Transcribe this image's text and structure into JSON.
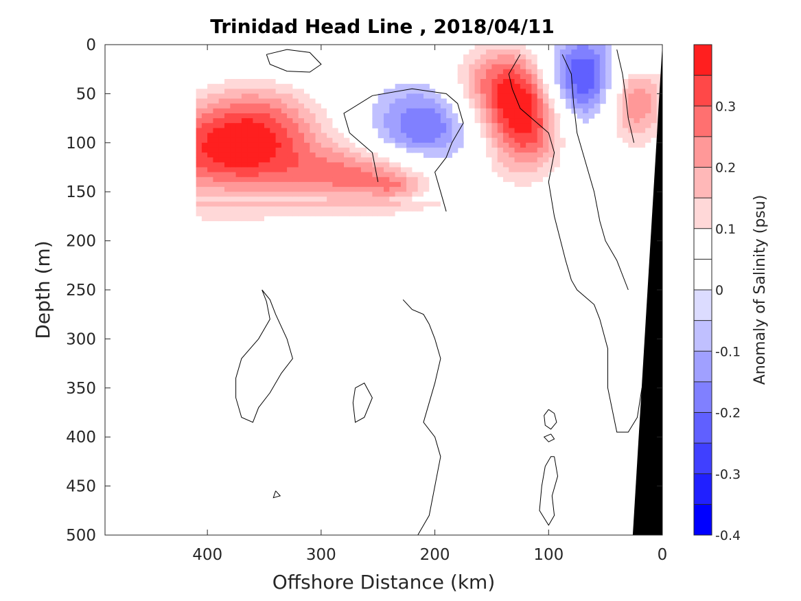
{
  "chart_data": {
    "type": "heatmap",
    "title": "Trinidad Head Line , 2018/04/11",
    "xlabel": "Offshore Distance (km)",
    "ylabel": "Depth (m)",
    "xlim": [
      490,
      0
    ],
    "ylim": [
      0,
      500
    ],
    "x_ticks": [
      400,
      300,
      200,
      100,
      0
    ],
    "y_ticks": [
      0,
      50,
      100,
      150,
      200,
      250,
      300,
      350,
      400,
      450,
      500
    ],
    "colorbar": {
      "label": "Anomaly of Salinity (psu)",
      "range": [
        -0.4,
        0.4
      ],
      "ticks": [
        -0.4,
        -0.3,
        -0.2,
        -0.1,
        0,
        0.1,
        0.2,
        0.3
      ],
      "tick_labels": [
        "-0.4",
        "-0.3",
        "-0.2",
        "-0.1",
        "0",
        "0.1",
        "0.2",
        "0.3"
      ],
      "levels": 16,
      "colors": [
        "#0000ff",
        "#2020ff",
        "#4040ff",
        "#6060ff",
        "#8080ff",
        "#a0a0ff",
        "#c0c0ff",
        "#dcdcff",
        "#ffffff",
        "#ffffff",
        "#ffd8d8",
        "#ffb8b8",
        "#ff9898",
        "#ff7070",
        "#ff4848",
        "#ff1f1f"
      ]
    },
    "anomaly_blobs": [
      {
        "x": 385,
        "depth": 110,
        "rx": 85,
        "rz": 50,
        "value": 0.32
      },
      {
        "x": 355,
        "depth": 75,
        "rx": 55,
        "rz": 45,
        "value": 0.16
      },
      {
        "x": 260,
        "depth": 135,
        "rx": 70,
        "rz": 30,
        "value": 0.24
      },
      {
        "x": 235,
        "depth": 145,
        "rx": 20,
        "rz": 12,
        "value": 0.08
      },
      {
        "x": 150,
        "depth": 40,
        "rx": 40,
        "rz": 45,
        "value": 0.2
      },
      {
        "x": 120,
        "depth": 75,
        "rx": 35,
        "rz": 60,
        "value": 0.36
      },
      {
        "x": 25,
        "depth": 55,
        "rx": 30,
        "rz": 50,
        "value": 0.28
      },
      {
        "x": 210,
        "depth": 85,
        "rx": 45,
        "rz": 42,
        "value": -0.22
      },
      {
        "x": 70,
        "depth": 35,
        "rx": 38,
        "rz": 45,
        "value": -0.3
      },
      {
        "x": 15,
        "depth": 20,
        "rx": 12,
        "rz": 15,
        "value": -0.1
      },
      {
        "x": 320,
        "depth": 15,
        "rx": 35,
        "rz": 14,
        "value": -0.06
      }
    ],
    "data_coverage_x": [
      410,
      0
    ],
    "data_coverage_depth_max_km": [
      [
        410,
        200
      ],
      [
        300,
        205
      ],
      [
        170,
        205
      ],
      [
        100,
        160
      ]
    ],
    "zero_contours": [
      [
        [
          348,
          10
        ],
        [
          330,
          5
        ],
        [
          310,
          8
        ],
        [
          300,
          20
        ],
        [
          310,
          28
        ],
        [
          330,
          27
        ],
        [
          345,
          20
        ],
        [
          348,
          10
        ]
      ],
      [
        [
          250,
          140
        ],
        [
          255,
          110
        ],
        [
          275,
          90
        ],
        [
          280,
          70
        ],
        [
          255,
          52
        ],
        [
          220,
          45
        ],
        [
          190,
          50
        ],
        [
          180,
          60
        ],
        [
          175,
          80
        ],
        [
          185,
          100
        ],
        [
          190,
          115
        ],
        [
          200,
          130
        ],
        [
          195,
          150
        ],
        [
          190,
          170
        ]
      ],
      [
        [
          125,
          10
        ],
        [
          135,
          30
        ],
        [
          132,
          45
        ],
        [
          125,
          65
        ],
        [
          100,
          90
        ],
        [
          95,
          110
        ],
        [
          100,
          140
        ],
        [
          95,
          175
        ],
        [
          85,
          220
        ],
        [
          80,
          240
        ],
        [
          75,
          250
        ],
        [
          60,
          265
        ],
        [
          55,
          280
        ],
        [
          48,
          310
        ],
        [
          48,
          350
        ],
        [
          40,
          395
        ],
        [
          30,
          395
        ],
        [
          22,
          380
        ],
        [
          18,
          350
        ]
      ],
      [
        [
          88,
          10
        ],
        [
          80,
          30
        ],
        [
          78,
          60
        ],
        [
          75,
          90
        ],
        [
          70,
          110
        ],
        [
          60,
          150
        ],
        [
          55,
          180
        ],
        [
          50,
          200
        ],
        [
          40,
          220
        ],
        [
          30,
          250
        ]
      ],
      [
        [
          40,
          5
        ],
        [
          35,
          30
        ],
        [
          32,
          55
        ],
        [
          30,
          75
        ],
        [
          25,
          100
        ]
      ],
      [
        [
          352,
          250
        ],
        [
          345,
          260
        ],
        [
          340,
          275
        ],
        [
          330,
          300
        ],
        [
          325,
          320
        ],
        [
          335,
          335
        ],
        [
          345,
          355
        ],
        [
          355,
          370
        ],
        [
          360,
          385
        ],
        [
          370,
          380
        ],
        [
          375,
          360
        ],
        [
          375,
          340
        ],
        [
          370,
          320
        ],
        [
          355,
          300
        ],
        [
          345,
          280
        ],
        [
          348,
          262
        ],
        [
          352,
          250
        ]
      ],
      [
        [
          228,
          260
        ],
        [
          220,
          270
        ],
        [
          210,
          275
        ],
        [
          205,
          285
        ],
        [
          200,
          300
        ],
        [
          195,
          320
        ],
        [
          200,
          345
        ],
        [
          205,
          365
        ],
        [
          210,
          385
        ],
        [
          200,
          400
        ],
        [
          195,
          420
        ],
        [
          200,
          450
        ],
        [
          205,
          480
        ],
        [
          215,
          500
        ]
      ],
      [
        [
          270,
          350
        ],
        [
          262,
          345
        ],
        [
          255,
          360
        ],
        [
          262,
          380
        ],
        [
          270,
          385
        ],
        [
          272,
          365
        ],
        [
          270,
          350
        ]
      ],
      [
        [
          100,
          372
        ],
        [
          95,
          376
        ],
        [
          93,
          385
        ],
        [
          98,
          392
        ],
        [
          103,
          388
        ],
        [
          104,
          378
        ],
        [
          100,
          372
        ]
      ],
      [
        [
          98,
          397
        ],
        [
          95,
          402
        ],
        [
          100,
          405
        ],
        [
          104,
          400
        ],
        [
          98,
          397
        ]
      ],
      [
        [
          95,
          420
        ],
        [
          92,
          440
        ],
        [
          97,
          460
        ],
        [
          95,
          480
        ],
        [
          100,
          490
        ],
        [
          108,
          475
        ],
        [
          106,
          450
        ],
        [
          103,
          430
        ],
        [
          98,
          420
        ],
        [
          95,
          420
        ]
      ],
      [
        [
          340,
          455
        ],
        [
          336,
          460
        ],
        [
          342,
          462
        ],
        [
          340,
          455
        ]
      ]
    ],
    "shelf_bottom": [
      [
        0,
        0
      ],
      [
        26,
        500
      ],
      [
        0,
        500
      ]
    ]
  }
}
